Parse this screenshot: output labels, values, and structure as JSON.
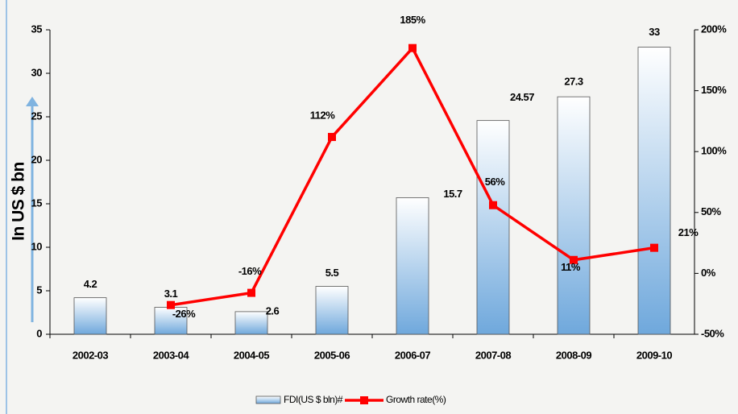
{
  "chart_data": {
    "type": "bar-line",
    "y_label": "In US $ bn",
    "categories": [
      "2002-03",
      "2003-04",
      "2004-05",
      "2005-06",
      "2006-07",
      "2007-08",
      "2008-09",
      "2009-10"
    ],
    "series": [
      {
        "name": "FDI(US $ bln)#",
        "type": "bar",
        "color": "#5b9bd5",
        "values": [
          4.2,
          3.1,
          2.6,
          5.5,
          15.7,
          24.57,
          27.3,
          33
        ]
      },
      {
        "name": "Growth rate(%)",
        "type": "line",
        "axis": "y2",
        "color": "#ff0000",
        "values": [
          null,
          -26,
          -16,
          112,
          185,
          56,
          11,
          21
        ],
        "value_labels": [
          null,
          "-26%",
          "-16%",
          "112%",
          "185%",
          "56%",
          "11%",
          "21%"
        ]
      }
    ],
    "ylim": [
      0,
      35
    ],
    "yticks": [
      0,
      5,
      10,
      15,
      20,
      25,
      30,
      35
    ],
    "y2lim": [
      -50,
      200
    ],
    "y2ticks": [
      {
        "value": -50,
        "label": "-50%"
      },
      {
        "value": 0,
        "label": "0%"
      },
      {
        "value": 50,
        "label": "50%"
      },
      {
        "value": 100,
        "label": "100%"
      },
      {
        "value": 150,
        "label": "150%"
      },
      {
        "value": 200,
        "label": "200%"
      }
    ],
    "legend": "bottom"
  }
}
